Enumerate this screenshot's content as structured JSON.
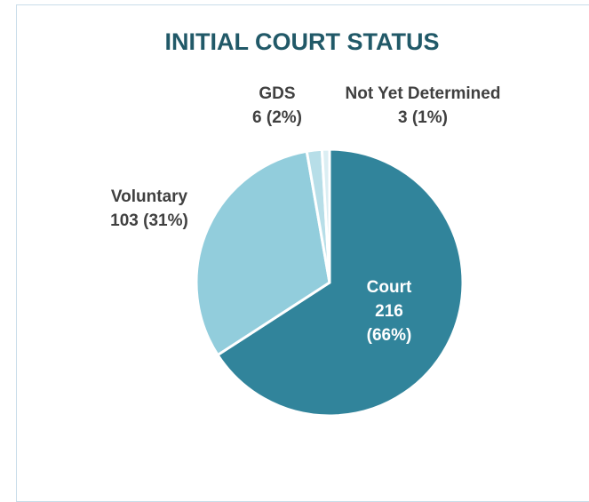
{
  "chart_data": {
    "type": "pie",
    "title": "INITIAL COURT STATUS",
    "categories": [
      "Court",
      "Voluntary",
      "GDS",
      "Not Yet Determined"
    ],
    "values": [
      216,
      103,
      6,
      3
    ],
    "value_labels": [
      "216 (66%)",
      "103 (31%)",
      "6 (2%)",
      "3 (1%)"
    ],
    "colors": [
      "#31849b",
      "#92cddc",
      "#b7dee8",
      "#dbeef3"
    ]
  }
}
